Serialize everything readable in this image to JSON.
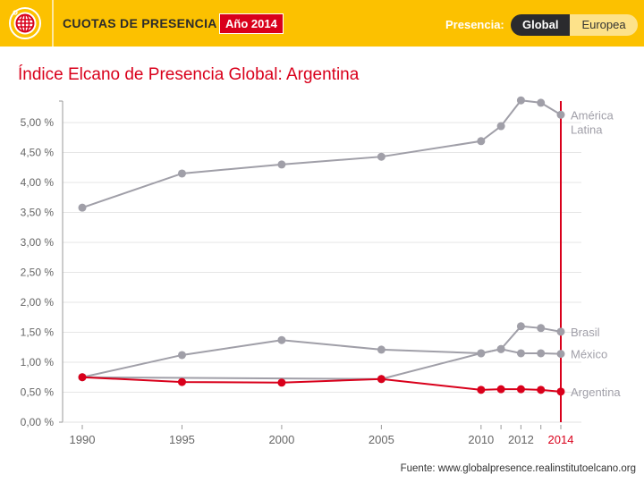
{
  "header": {
    "logo_icon": "globe-icon",
    "title": "CUOTAS DE PRESENCIA",
    "year_badge": "Año 2014",
    "presence_label": "Presencia:",
    "toggle_options": [
      {
        "label": "Global",
        "active": true
      },
      {
        "label": "Europea",
        "active": false
      }
    ]
  },
  "colors": {
    "brand_yellow": "#fcc100",
    "accent_red": "#d9001b",
    "series_gray": "#a09fa8",
    "dark": "#2b2b2e"
  },
  "source": "Fuente: www.globalpresence.realinstitutoelcano.org",
  "chart_data": {
    "type": "line",
    "title": "Índice Elcano de Presencia Global: Argentina",
    "xlabel": "",
    "ylabel": "",
    "x": [
      1990,
      1995,
      2000,
      2005,
      2010,
      2011,
      2012,
      2013,
      2014
    ],
    "x_tick_labels": [
      "1990",
      "1995",
      "2000",
      "2005",
      "2010",
      "",
      "2012",
      "",
      "2014"
    ],
    "highlight_year": 2014,
    "ylim": [
      0,
      5.3
    ],
    "y_ticks": [
      0,
      0.5,
      1.0,
      1.5,
      2.0,
      2.5,
      3.0,
      3.5,
      4.0,
      4.5,
      5.0
    ],
    "y_tick_labels": [
      "0,00 %",
      "0,50 %",
      "1,00 %",
      "1,50 %",
      "2,00 %",
      "2,50 %",
      "3,00 %",
      "3,50 %",
      "4,00 %",
      "4,50 %",
      "5,00 %"
    ],
    "grid": true,
    "series": [
      {
        "name": "América Latina",
        "label_lines": [
          "América",
          "Latina"
        ],
        "color": "#a09fa8",
        "points": [
          [
            1990,
            3.58
          ],
          [
            1995,
            4.15
          ],
          [
            2000,
            4.3
          ],
          [
            2005,
            4.43
          ],
          [
            2010,
            4.69
          ],
          [
            2011,
            4.94
          ],
          [
            2012,
            5.37
          ],
          [
            2013,
            5.33
          ],
          [
            2014,
            5.13
          ]
        ]
      },
      {
        "name": "Brasil",
        "label_lines": [
          "Brasil"
        ],
        "color": "#a09fa8",
        "points": [
          [
            1990,
            0.75
          ],
          [
            2005,
            0.72
          ],
          [
            2010,
            1.15
          ],
          [
            2011,
            1.22
          ],
          [
            2012,
            1.6
          ],
          [
            2013,
            1.57
          ],
          [
            2014,
            1.51
          ]
        ]
      },
      {
        "name": "México",
        "label_lines": [
          "México"
        ],
        "color": "#a09fa8",
        "points": [
          [
            1990,
            0.75
          ],
          [
            1995,
            1.12
          ],
          [
            2000,
            1.37
          ],
          [
            2005,
            1.21
          ],
          [
            2010,
            1.15
          ],
          [
            2011,
            1.22
          ],
          [
            2012,
            1.15
          ],
          [
            2013,
            1.15
          ],
          [
            2014,
            1.14
          ]
        ]
      },
      {
        "name": "Argentina",
        "label_lines": [
          "Argentina"
        ],
        "color": "#d9001b",
        "points": [
          [
            1990,
            0.75
          ],
          [
            1995,
            0.67
          ],
          [
            2000,
            0.66
          ],
          [
            2005,
            0.72
          ],
          [
            2010,
            0.54
          ],
          [
            2011,
            0.55
          ],
          [
            2012,
            0.55
          ],
          [
            2013,
            0.54
          ],
          [
            2014,
            0.51
          ]
        ]
      }
    ]
  }
}
